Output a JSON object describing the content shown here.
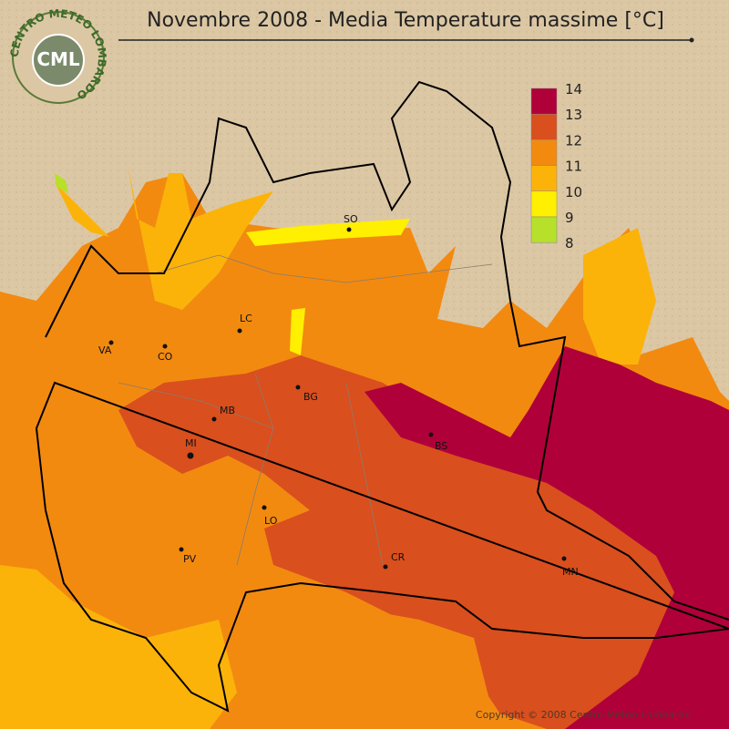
{
  "header": {
    "title": "Novembre 2008 - Media Temperature massime [°C]"
  },
  "logo": {
    "text": "CML",
    "ring": "CENTRO METEO LOMBARDO"
  },
  "legend": {
    "labels": [
      "14",
      "13",
      "12",
      "11",
      "10",
      "9",
      "8"
    ],
    "colors": [
      "#b0003a",
      "#d94f1e",
      "#f28a10",
      "#fbb30a",
      "#ffef00",
      "#b6e02a"
    ]
  },
  "cities": [
    "SO",
    "LC",
    "VA",
    "CO",
    "BG",
    "MB",
    "MI",
    "BS",
    "LO",
    "PV",
    "CR",
    "MN"
  ],
  "footer": {
    "copyright": "Copyright © 2008 Centro Meteo Lombardo"
  }
}
